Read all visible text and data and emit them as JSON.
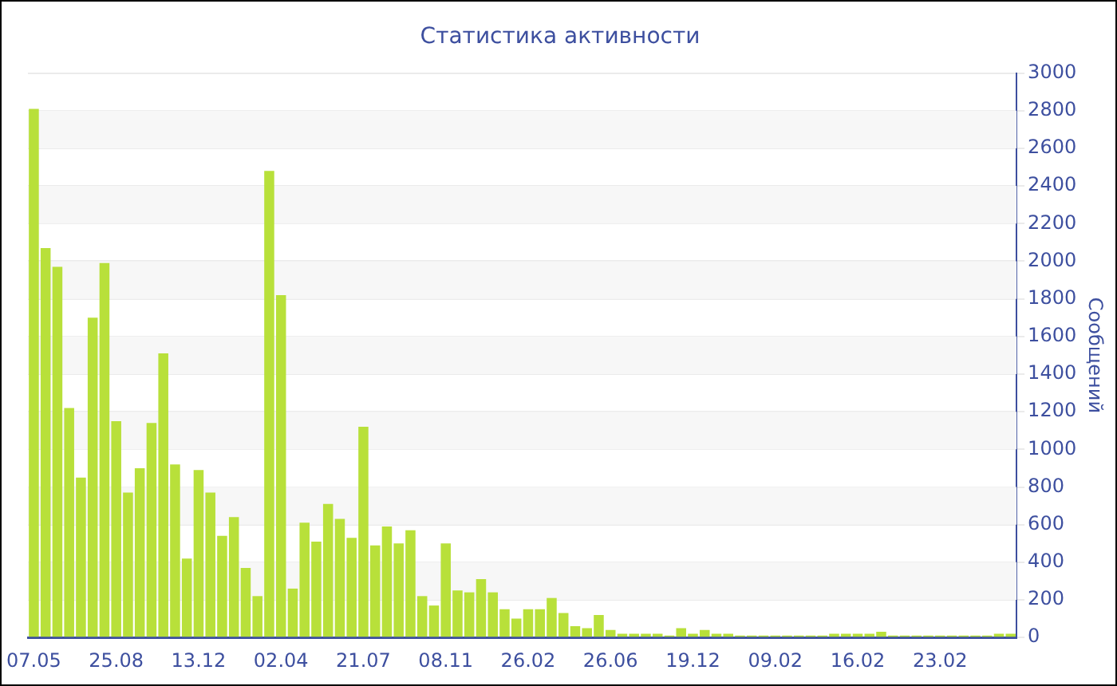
{
  "chart_data": {
    "type": "bar",
    "title": "Статистика активности",
    "ylabel": "Сообщений",
    "categories": [
      "07.05",
      null,
      null,
      null,
      null,
      null,
      null,
      "25.08",
      null,
      null,
      null,
      null,
      null,
      null,
      "13.12",
      null,
      null,
      null,
      null,
      null,
      null,
      "02.04",
      null,
      null,
      null,
      null,
      null,
      null,
      "21.07",
      null,
      null,
      null,
      null,
      null,
      null,
      "08.11",
      null,
      null,
      null,
      null,
      null,
      null,
      "26.02",
      null,
      null,
      null,
      null,
      null,
      null,
      "26.06",
      null,
      null,
      null,
      null,
      null,
      null,
      "19.12",
      null,
      null,
      null,
      null,
      null,
      null,
      "09.02",
      null,
      null,
      null,
      null,
      null,
      null,
      "16.02",
      null,
      null,
      null,
      null,
      null,
      null,
      "23.02",
      null,
      null,
      null,
      null,
      null,
      null
    ],
    "values": [
      2810,
      2070,
      1970,
      1220,
      850,
      1700,
      1990,
      1150,
      770,
      900,
      1140,
      1510,
      920,
      420,
      890,
      770,
      540,
      640,
      370,
      220,
      2480,
      1820,
      260,
      610,
      510,
      710,
      630,
      530,
      1120,
      490,
      590,
      500,
      570,
      220,
      170,
      500,
      250,
      240,
      310,
      240,
      150,
      100,
      150,
      150,
      210,
      130,
      60,
      50,
      120,
      40,
      20,
      20,
      20,
      20,
      10,
      50,
      20,
      40,
      20,
      20,
      10,
      10,
      10,
      10,
      10,
      10,
      10,
      10,
      20,
      20,
      20,
      20,
      30,
      10,
      10,
      10,
      10,
      10,
      10,
      10,
      10,
      10,
      20,
      20
    ],
    "color": "#b8e03a",
    "ylim": [
      0,
      3000
    ],
    "yticks": [
      0,
      200,
      400,
      600,
      800,
      1000,
      1200,
      1400,
      1600,
      1800,
      2000,
      2200,
      2400,
      2600,
      2800,
      3000
    ],
    "grid": "y",
    "legend": false
  }
}
